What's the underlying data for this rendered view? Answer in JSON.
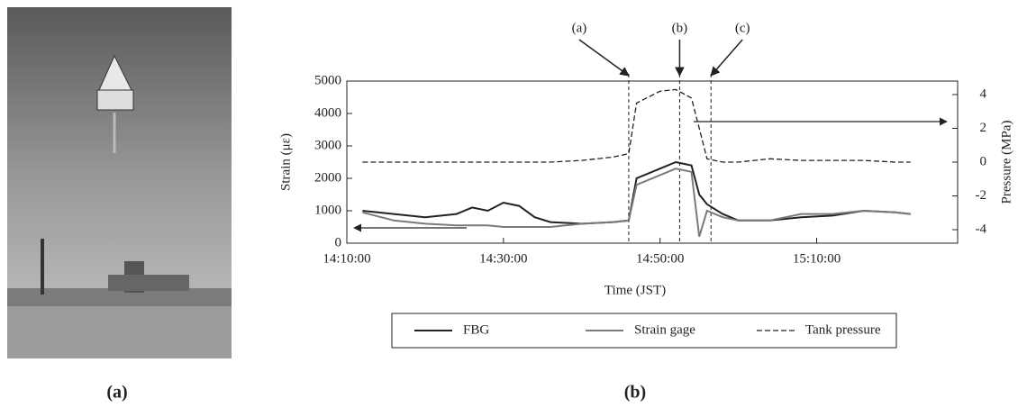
{
  "figure": {
    "labels": [
      "(a)",
      "(b)"
    ]
  },
  "chart_data": {
    "type": "line",
    "xlabel": "Time (JST)",
    "ylabel": "Strain (με)",
    "y2label": "Pressure (MPa)",
    "x": [
      "14:12:00",
      "14:16:00",
      "14:20:00",
      "14:24:00",
      "14:26:00",
      "14:28:00",
      "14:30:00",
      "14:32:00",
      "14:34:00",
      "14:36:00",
      "14:40:00",
      "14:44:00",
      "14:46:00",
      "14:47:00",
      "14:50:00",
      "14:52:00",
      "14:54:00",
      "14:55:00",
      "14:56:00",
      "14:58:00",
      "15:00:00",
      "15:04:00",
      "15:08:00",
      "15:12:00",
      "15:16:00",
      "15:20:00",
      "15:22:00"
    ],
    "series": [
      {
        "name": "FBG",
        "color": "#222222",
        "dash": false,
        "values": [
          1000,
          900,
          800,
          900,
          1100,
          1000,
          1250,
          1150,
          800,
          650,
          600,
          650,
          700,
          2000,
          2300,
          2500,
          2400,
          1500,
          1200,
          900,
          700,
          700,
          800,
          850,
          1000,
          950,
          900
        ]
      },
      {
        "name": "Strain gage",
        "color": "#7a7a7a",
        "dash": false,
        "values": [
          950,
          700,
          600,
          550,
          550,
          550,
          500,
          500,
          500,
          500,
          600,
          650,
          700,
          1800,
          2100,
          2300,
          2200,
          200,
          1000,
          800,
          700,
          700,
          900,
          900,
          1000,
          950,
          900
        ]
      },
      {
        "name": "Tank pressure",
        "color": "#222222",
        "dash": true,
        "axis": "y2",
        "values": [
          0,
          0,
          0,
          0,
          0,
          0,
          0,
          0,
          0,
          0,
          0.1,
          0.3,
          0.5,
          3.5,
          4.2,
          4.3,
          3.8,
          2,
          0.2,
          0,
          0,
          0.2,
          0.1,
          0.1,
          0.1,
          0,
          0
        ]
      }
    ],
    "xlim": [
      "14:10:00",
      "15:28:00"
    ],
    "xticks": [
      "14:10:00",
      "14:30:00",
      "14:50:00",
      "15:10:00"
    ],
    "ylim": [
      0,
      5000
    ],
    "yticks": [
      0,
      1000,
      2000,
      3000,
      4000,
      5000
    ],
    "y2lim": [
      -4.8,
      4.8
    ],
    "y2ticks": [
      -4,
      -2,
      0,
      2,
      4
    ],
    "annotations": [
      {
        "text": "(a)",
        "x": "14:46:00"
      },
      {
        "text": "(b)",
        "x": "14:52:30"
      },
      {
        "text": "(c)",
        "x": "14:56:30"
      }
    ]
  }
}
